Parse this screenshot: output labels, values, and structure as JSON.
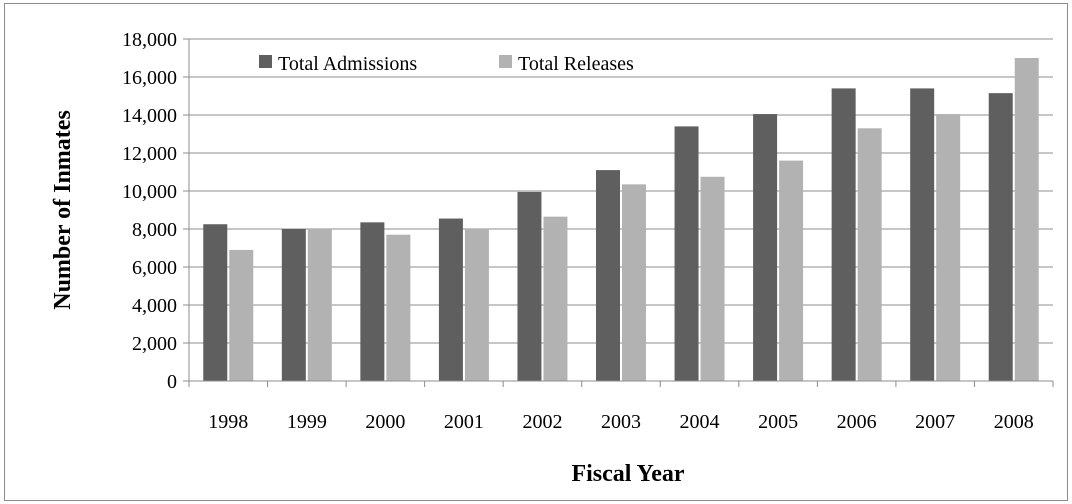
{
  "chart_data": {
    "type": "bar",
    "title": "",
    "xlabel": "Fiscal Year",
    "ylabel": "Number of Inmates",
    "ylim": [
      0,
      18000
    ],
    "y_ticks": [
      0,
      2000,
      4000,
      6000,
      8000,
      10000,
      12000,
      14000,
      16000,
      18000
    ],
    "y_tick_labels": [
      "0",
      "2,000",
      "4,000",
      "6,000",
      "8,000",
      "10,000",
      "12,000",
      "14,000",
      "16,000",
      "18,000"
    ],
    "grid": true,
    "legend_position": "top-left",
    "categories": [
      "1998",
      "1999",
      "2000",
      "2001",
      "2002",
      "2003",
      "2004",
      "2005",
      "2006",
      "2007",
      "2008"
    ],
    "series": [
      {
        "name": "Total Admissions",
        "color": "#5f5f5f",
        "values": [
          8250,
          8000,
          8350,
          8550,
          9950,
          11100,
          13400,
          14050,
          15400,
          15400,
          15150
        ]
      },
      {
        "name": "Total Releases",
        "color": "#b2b2b2",
        "values": [
          6900,
          8000,
          7700,
          8000,
          8650,
          10350,
          10750,
          11600,
          13300,
          14050,
          17000
        ]
      }
    ]
  }
}
